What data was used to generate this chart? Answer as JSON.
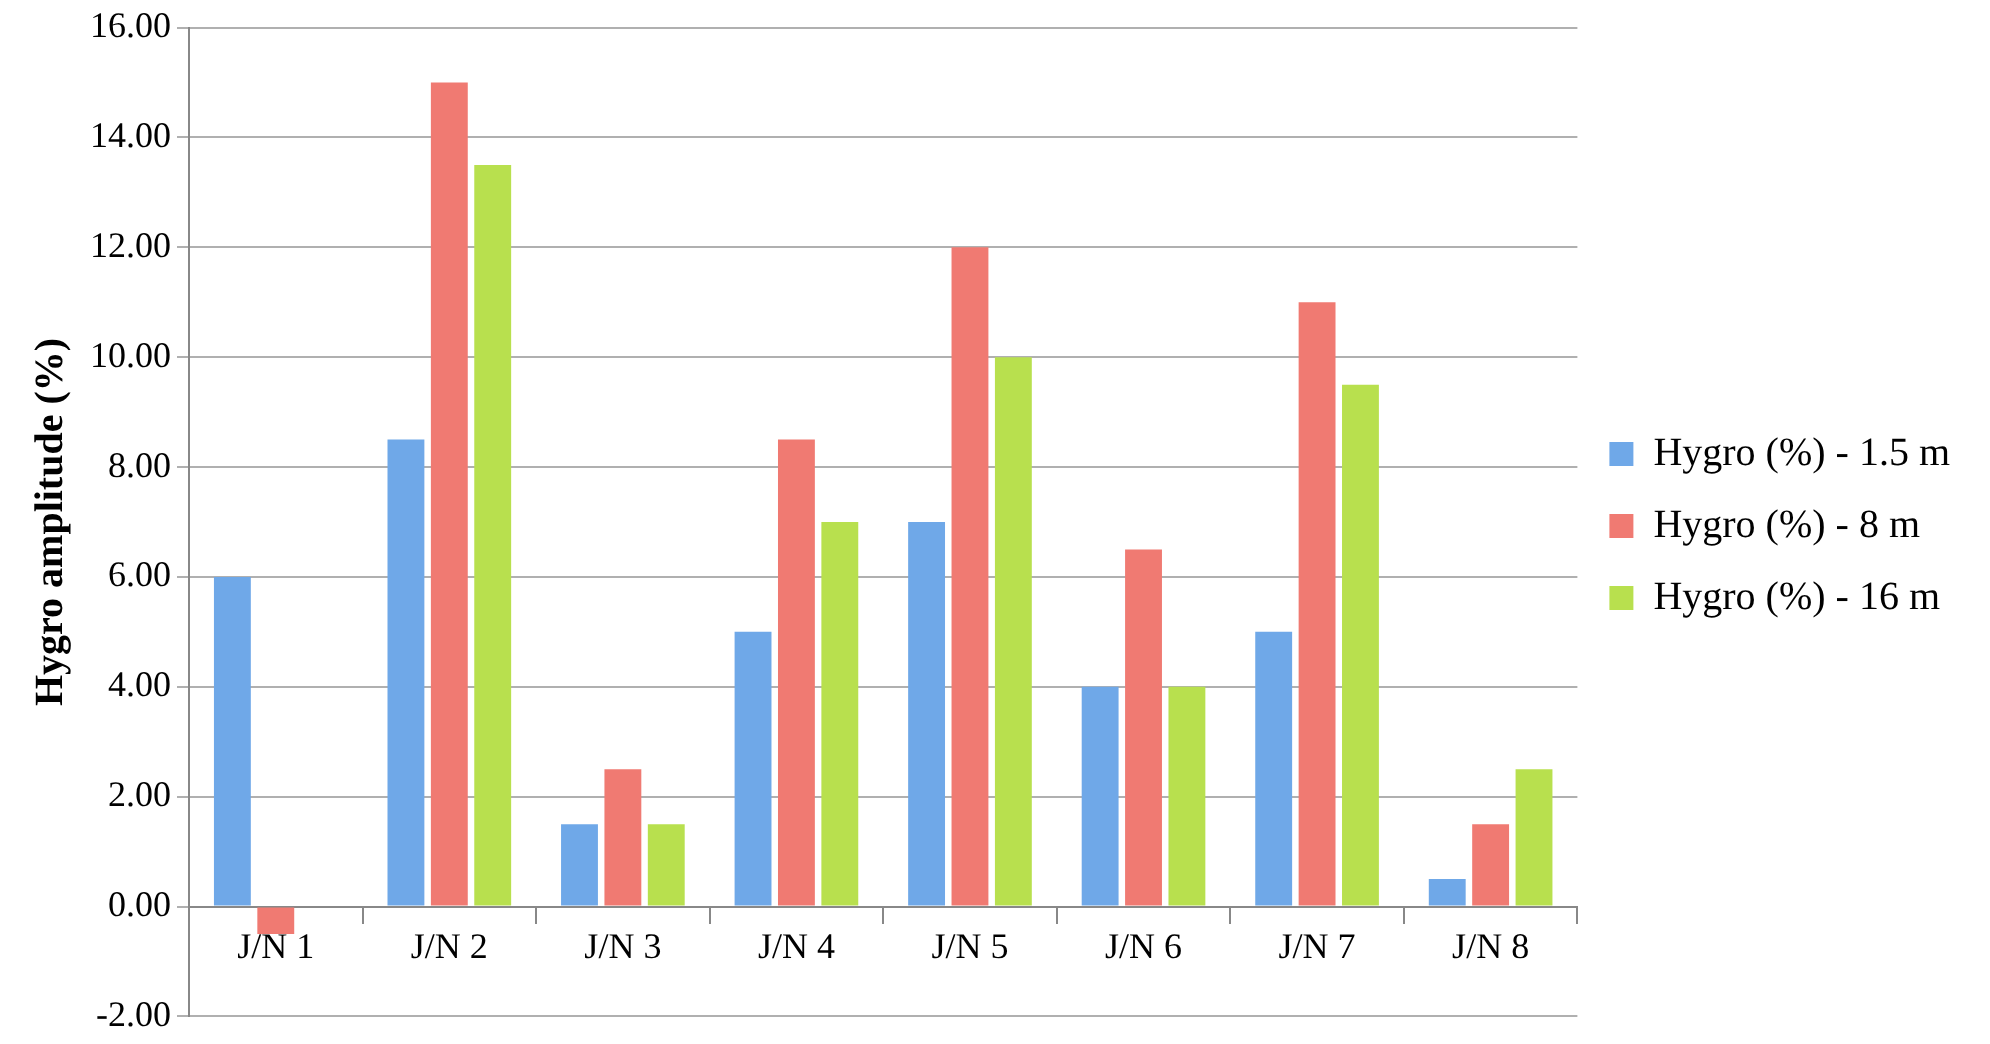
{
  "chart_data": {
    "type": "bar",
    "ylabel": "Hygro amplitude (%)",
    "categories": [
      "J/N 1",
      "J/N 2",
      "J/N 3",
      "J/N 4",
      "J/N 5",
      "J/N 6",
      "J/N 7",
      "J/N 8"
    ],
    "series": [
      {
        "name": "Hygro (%) - 1.5 m",
        "color": "#6fa8e8",
        "values": [
          6,
          8.5,
          1.5,
          5,
          7,
          4,
          5,
          0.5
        ]
      },
      {
        "name": "Hygro (%) - 8 m",
        "color": "#f07a72",
        "values": [
          -0.5,
          15,
          2.5,
          8.5,
          12,
          6.5,
          11,
          1.5
        ]
      },
      {
        "name": "Hygro (%) - 16 m",
        "color": "#b8e04e",
        "values": [
          0,
          13.5,
          1.5,
          7,
          10,
          4,
          9.5,
          2.5
        ]
      }
    ],
    "ylim": [
      -2,
      16
    ],
    "yticks": [
      {
        "value": -2,
        "label": "-2.00"
      },
      {
        "value": 0,
        "label": "0.00"
      },
      {
        "value": 2,
        "label": "2.00"
      },
      {
        "value": 4,
        "label": "4.00"
      },
      {
        "value": 6,
        "label": "6.00"
      },
      {
        "value": 8,
        "label": "8.00"
      },
      {
        "value": 10,
        "label": "10.00"
      },
      {
        "value": 12,
        "label": "12.00"
      },
      {
        "value": 14,
        "label": "14.00"
      },
      {
        "value": 16,
        "label": "16.00"
      }
    ],
    "grid": "y",
    "legend": "right"
  }
}
